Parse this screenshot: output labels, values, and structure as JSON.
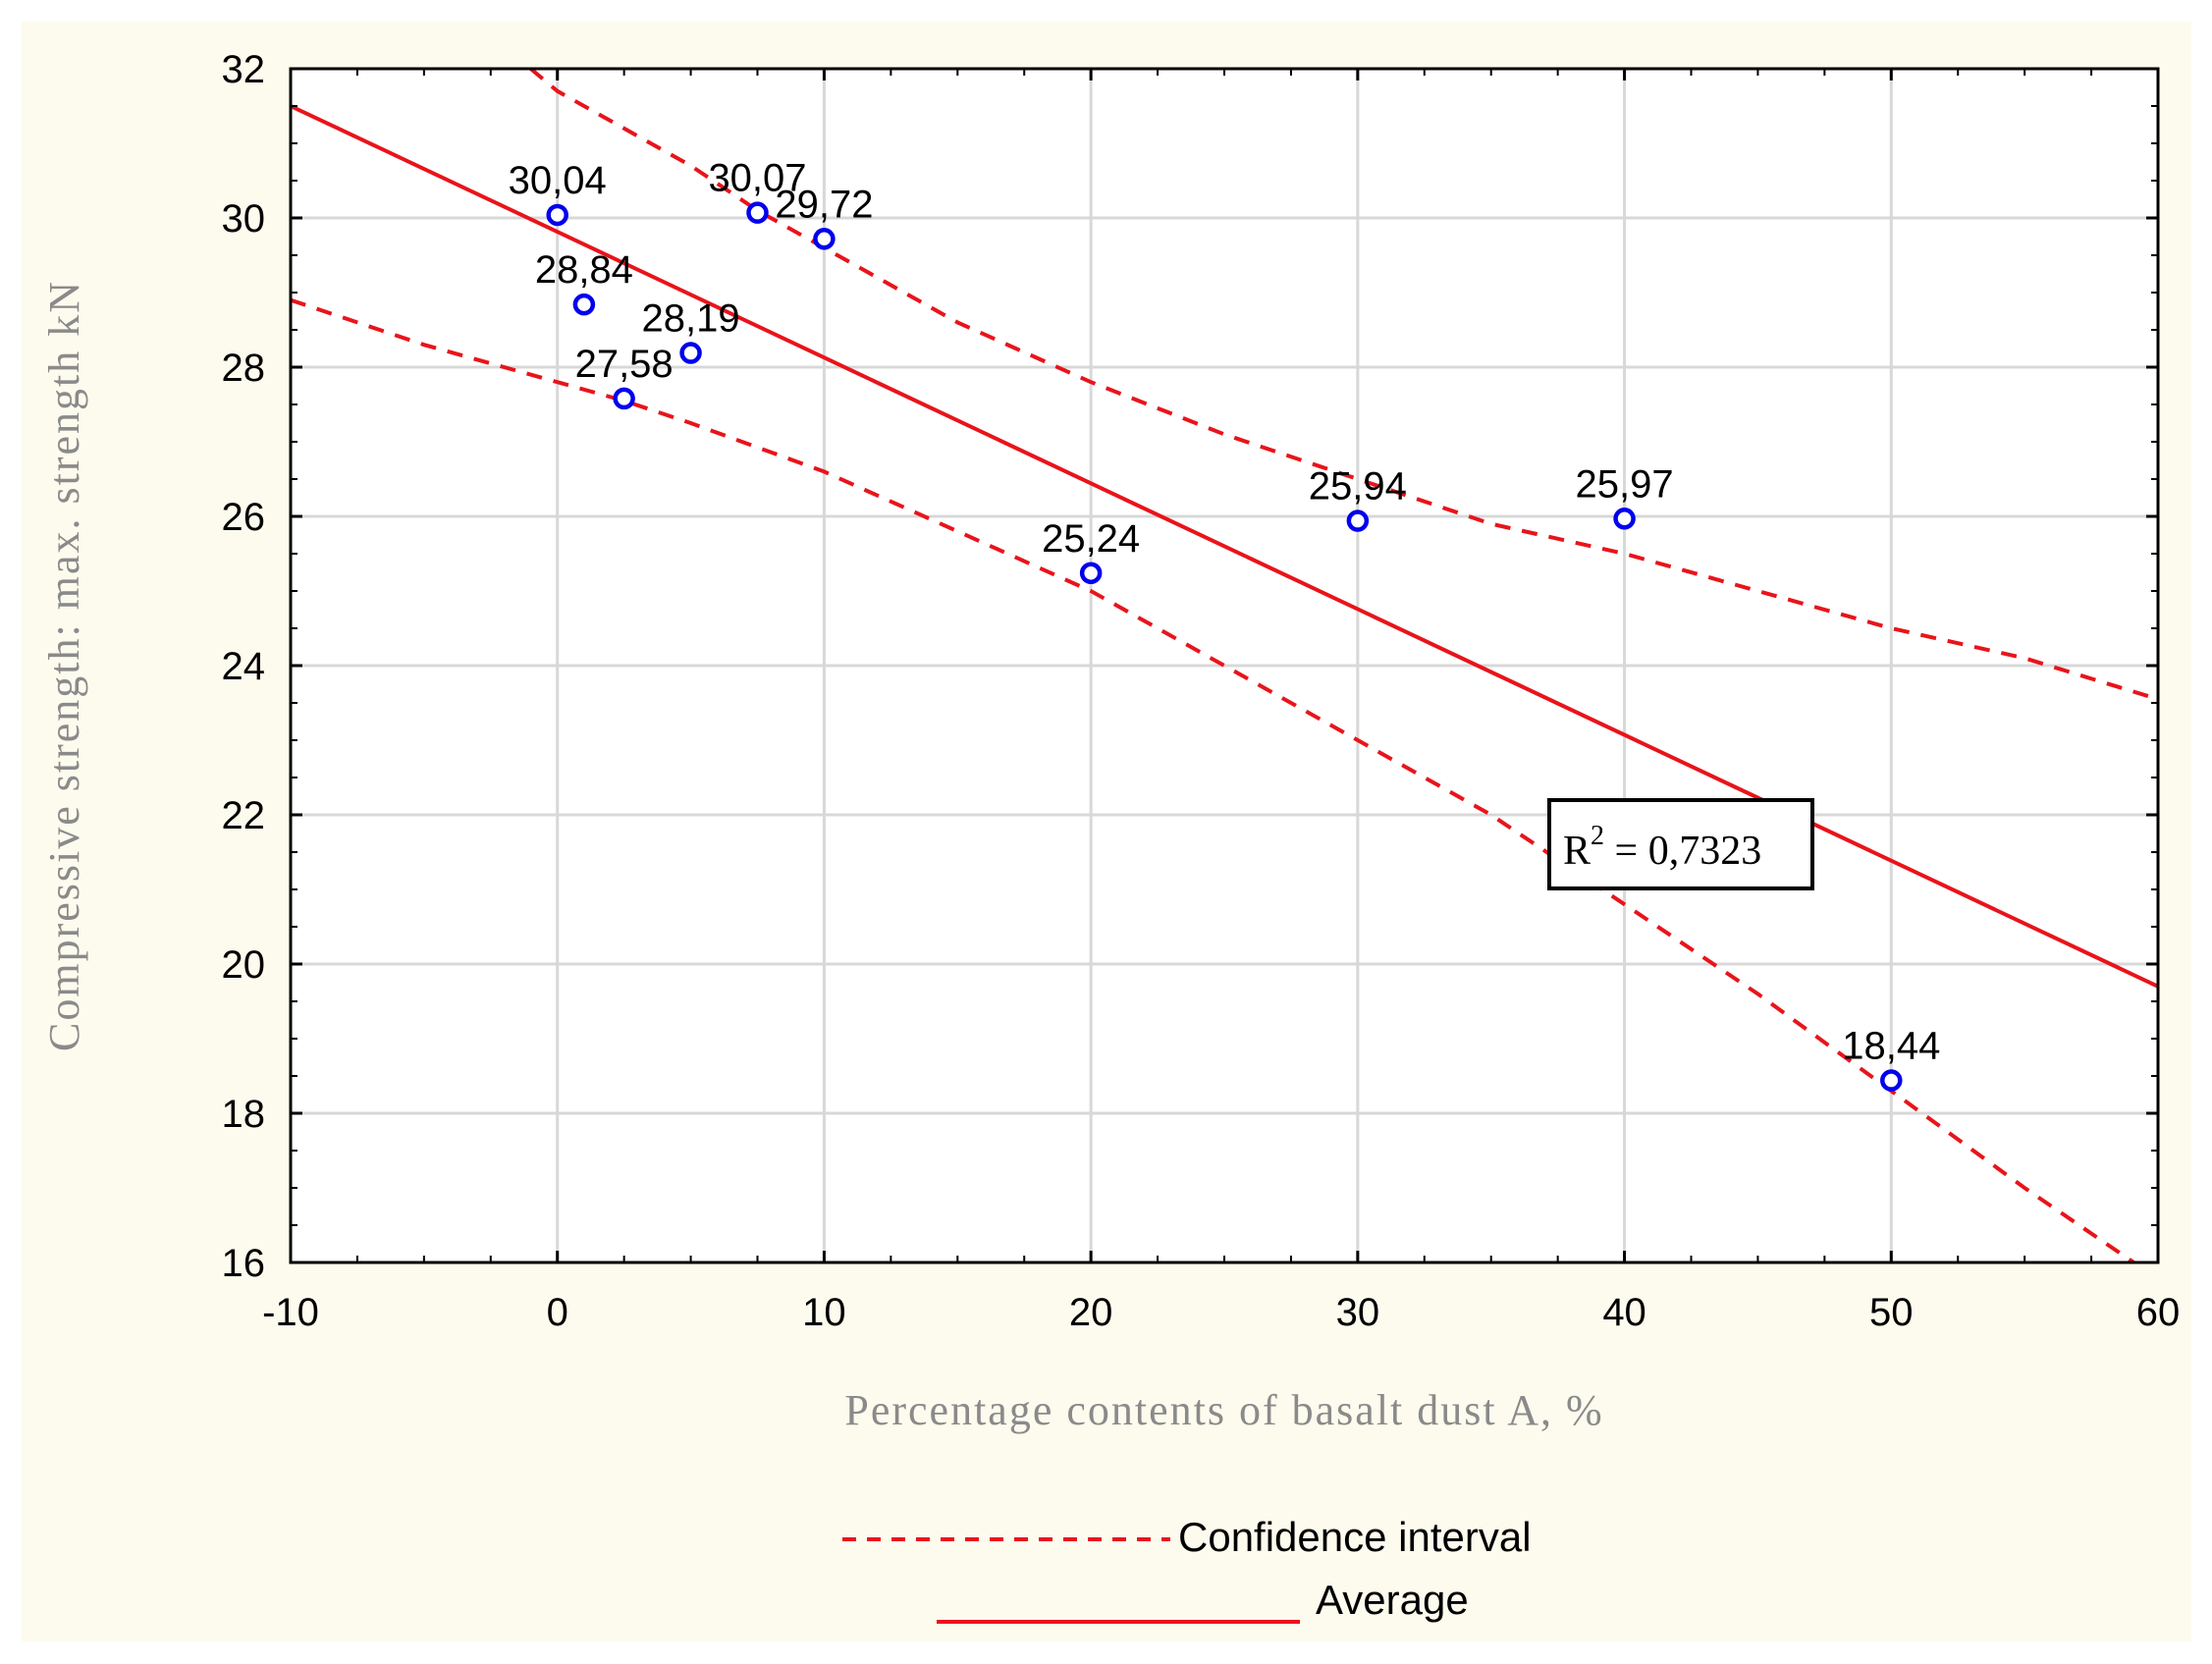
{
  "chart_data": {
    "type": "scatter",
    "title": "",
    "xlabel": "Percentage contents of basalt dust A, %",
    "ylabel": "Compressive strength: max. strength kN",
    "xlim": [
      -10,
      60
    ],
    "ylim": [
      16,
      32
    ],
    "x_ticks": [
      -10,
      0,
      10,
      20,
      30,
      40,
      50,
      60
    ],
    "y_ticks": [
      16,
      18,
      20,
      22,
      24,
      26,
      28,
      30,
      32
    ],
    "x_tick_labels": [
      "-10",
      "0",
      "10",
      "20",
      "30",
      "40",
      "50",
      "60"
    ],
    "y_tick_labels": [
      "16",
      "18",
      "20",
      "22",
      "24",
      "26",
      "28",
      "30",
      "32"
    ],
    "grid": true,
    "points": [
      {
        "x": 0,
        "y": 30.04,
        "label": "30,04"
      },
      {
        "x": 1,
        "y": 28.84,
        "label": "28,84"
      },
      {
        "x": 2.5,
        "y": 27.58,
        "label": "27,58"
      },
      {
        "x": 5,
        "y": 28.19,
        "label": "28,19"
      },
      {
        "x": 7.5,
        "y": 30.07,
        "label": "30,07"
      },
      {
        "x": 10,
        "y": 29.72,
        "label": "29,72"
      },
      {
        "x": 20,
        "y": 25.24,
        "label": "25,24"
      },
      {
        "x": 30,
        "y": 25.94,
        "label": "25,94"
      },
      {
        "x": 40,
        "y": 25.97,
        "label": "25,97"
      },
      {
        "x": 50,
        "y": 18.44,
        "label": "18,44"
      }
    ],
    "regression": {
      "x": [
        -10,
        60
      ],
      "y": [
        31.5,
        19.7
      ]
    },
    "confidence_upper": {
      "x": [
        -1,
        0,
        2.5,
        5,
        7.5,
        10,
        15,
        20,
        25,
        30,
        35,
        40,
        45,
        50,
        55,
        60
      ],
      "y": [
        32.0,
        31.7,
        31.2,
        30.7,
        30.1,
        29.6,
        28.6,
        27.8,
        27.1,
        26.5,
        25.9,
        25.5,
        25.0,
        24.5,
        24.1,
        23.55
      ]
    },
    "confidence_lower": {
      "x": [
        -10,
        -5,
        0,
        2.5,
        5,
        10,
        15,
        20,
        25,
        30,
        35,
        40,
        45,
        50,
        55,
        59.5
      ],
      "y": [
        28.9,
        28.3,
        27.8,
        27.55,
        27.25,
        26.6,
        25.8,
        25.0,
        24.0,
        23.0,
        22.0,
        20.8,
        19.6,
        18.3,
        17.0,
        15.9
      ]
    },
    "annotation": {
      "base": "R",
      "exponent": "2",
      "text": " = 0,7323"
    },
    "legend": [
      {
        "label": "Confidence interval",
        "style": "dashed",
        "placement": "bottom-center"
      },
      {
        "label": "Average",
        "style": "solid",
        "placement": "bottom-center"
      }
    ],
    "colors": {
      "points": "#0000ee",
      "lines": "#e8141b",
      "grid": "#d8d8d8",
      "frame": "#000000",
      "background": "#fdfbee",
      "axis_title": "#8a8a8a"
    }
  }
}
